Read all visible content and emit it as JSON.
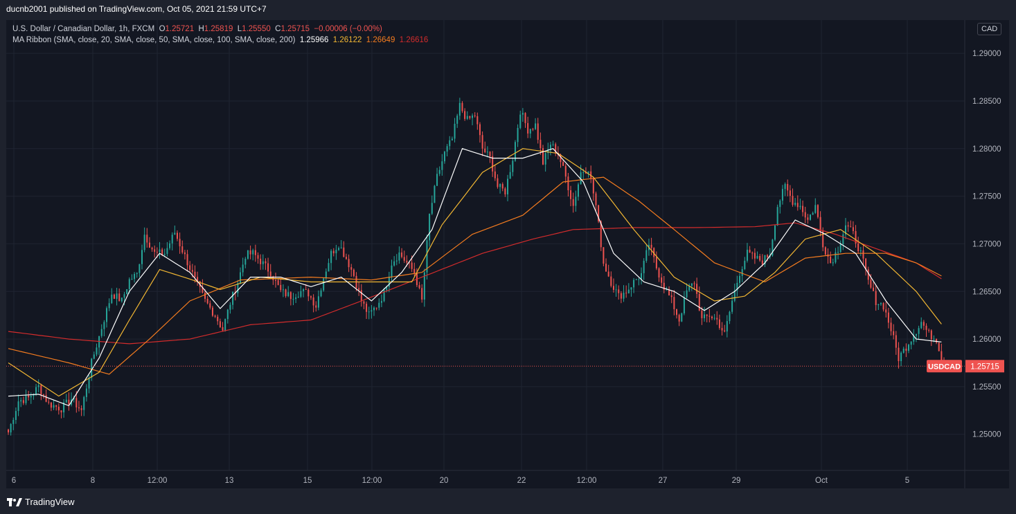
{
  "header": {
    "publisher_text": "ducnb2001 published on TradingView.com, Oct 05, 2021 21:59 UTC+7"
  },
  "legend": {
    "symbol": "U.S. Dollar / Canadian Dollar, 1h, FXCM",
    "open_label": "O",
    "open": "1.25721",
    "high_label": "H",
    "high": "1.25819",
    "low_label": "L",
    "low": "1.25550",
    "close_label": "C",
    "close": "1.25715",
    "change": "−0.00006 (−0.00%)",
    "indicator": "MA Ribbon (SMA, close, 20, SMA, close, 50, SMA, close, 100, SMA, close, 200)",
    "ma_values": [
      "1.25966",
      "1.26122",
      "1.26649",
      "1.26616"
    ]
  },
  "currency": "CAD",
  "price_tag": {
    "symbol": "USDCAD",
    "price": "1.25715"
  },
  "footer": {
    "brand": "TradingView"
  },
  "colors": {
    "background": "#131722",
    "up": "#26a69a",
    "down": "#ef5350",
    "ma20": "#ffffff",
    "ma50": "#f2b733",
    "ma100": "#f57c1f",
    "ma200": "#d42c2c",
    "grid": "#1f2431"
  },
  "chart_data": {
    "type": "line",
    "title": "U.S. Dollar / Canadian Dollar, 1h, FXCM",
    "price_scale": {
      "ticks": [
        "1.25000",
        "1.25500",
        "1.26000",
        "1.26500",
        "1.27000",
        "1.27500",
        "1.28000",
        "1.28500",
        "1.29000"
      ],
      "range": [
        1.2462,
        1.2935
      ]
    },
    "time_axis": {
      "labels": [
        "6",
        "8",
        "12:00",
        "13",
        "15",
        "12:00",
        "20",
        "22",
        "12:00",
        "27",
        "29",
        "Oct",
        "5"
      ]
    },
    "close_path": [
      [
        0,
        1.2502
      ],
      [
        4,
        1.2535
      ],
      [
        8,
        1.2538
      ],
      [
        12,
        1.255
      ],
      [
        16,
        1.2532
      ],
      [
        21,
        1.2527
      ],
      [
        25,
        1.2537
      ],
      [
        29,
        1.2525
      ],
      [
        33,
        1.2575
      ],
      [
        37,
        1.2612
      ],
      [
        41,
        1.2648
      ],
      [
        45,
        1.264
      ],
      [
        48,
        1.2662
      ],
      [
        51,
        1.2668
      ],
      [
        54,
        1.271
      ],
      [
        58,
        1.269
      ],
      [
        62,
        1.269
      ],
      [
        66,
        1.2712
      ],
      [
        70,
        1.2687
      ],
      [
        74,
        1.2662
      ],
      [
        78,
        1.264
      ],
      [
        82,
        1.2625
      ],
      [
        85,
        1.261
      ],
      [
        88,
        1.2638
      ],
      [
        91,
        1.266
      ],
      [
        94,
        1.2688
      ],
      [
        97,
        1.269
      ],
      [
        100,
        1.2682
      ],
      [
        104,
        1.267
      ],
      [
        108,
        1.265
      ],
      [
        112,
        1.2645
      ],
      [
        116,
        1.265
      ],
      [
        119,
        1.2648
      ],
      [
        122,
        1.2635
      ],
      [
        125,
        1.2665
      ],
      [
        128,
        1.269
      ],
      [
        131,
        1.27
      ],
      [
        134,
        1.2685
      ],
      [
        137,
        1.2667
      ],
      [
        140,
        1.264
      ],
      [
        143,
        1.2625
      ],
      [
        146,
        1.2635
      ],
      [
        149,
        1.2648
      ],
      [
        152,
        1.268
      ],
      [
        155,
        1.269
      ],
      [
        158,
        1.268
      ],
      [
        161,
        1.267
      ],
      [
        164,
        1.264
      ],
      [
        167,
        1.273
      ],
      [
        170,
        1.277
      ],
      [
        173,
        1.2795
      ],
      [
        176,
        1.281
      ],
      [
        179,
        1.2845
      ],
      [
        182,
        1.283
      ],
      [
        185,
        1.2835
      ],
      [
        188,
        1.28
      ],
      [
        191,
        1.279
      ],
      [
        194,
        1.276
      ],
      [
        197,
        1.2755
      ],
      [
        200,
        1.279
      ],
      [
        203,
        1.284
      ],
      [
        206,
        1.282
      ],
      [
        209,
        1.2825
      ],
      [
        212,
        1.2785
      ],
      [
        215,
        1.2805
      ],
      [
        218,
        1.2795
      ],
      [
        221,
        1.277
      ],
      [
        224,
        1.274
      ],
      [
        227,
        1.2775
      ],
      [
        230,
        1.278
      ],
      [
        233,
        1.274
      ],
      [
        236,
        1.268
      ],
      [
        239,
        1.266
      ],
      [
        242,
        1.2645
      ],
      [
        245,
        1.265
      ],
      [
        248,
        1.266
      ],
      [
        251,
        1.2668
      ],
      [
        254,
        1.27
      ],
      [
        257,
        1.2675
      ],
      [
        260,
        1.2655
      ],
      [
        263,
        1.264
      ],
      [
        266,
        1.262
      ],
      [
        269,
        1.265
      ],
      [
        272,
        1.266
      ],
      [
        275,
        1.262
      ],
      [
        278,
        1.2625
      ],
      [
        281,
        1.262
      ],
      [
        284,
        1.2605
      ],
      [
        287,
        1.264
      ],
      [
        290,
        1.267
      ],
      [
        293,
        1.269
      ],
      [
        296,
        1.2685
      ],
      [
        299,
        1.2682
      ],
      [
        302,
        1.269
      ],
      [
        305,
        1.274
      ],
      [
        308,
        1.276
      ],
      [
        311,
        1.2745
      ],
      [
        314,
        1.274
      ],
      [
        317,
        1.2725
      ],
      [
        320,
        1.274
      ],
      [
        323,
        1.27
      ],
      [
        326,
        1.268
      ],
      [
        329,
        1.2695
      ],
      [
        332,
        1.272
      ],
      [
        335,
        1.271
      ],
      [
        338,
        1.269
      ],
      [
        341,
        1.266
      ],
      [
        344,
        1.264
      ],
      [
        347,
        1.2635
      ],
      [
        350,
        1.261
      ],
      [
        353,
        1.258
      ],
      [
        356,
        1.2592
      ],
      [
        359,
        1.2605
      ],
      [
        362,
        1.2618
      ],
      [
        365,
        1.2605
      ],
      [
        368,
        1.26
      ],
      [
        371,
        1.25715
      ]
    ],
    "series": [
      {
        "name": "SMA 20",
        "last": 1.25966
      },
      {
        "name": "SMA 50",
        "last": 1.26122
      },
      {
        "name": "SMA 100",
        "last": 1.26649
      },
      {
        "name": "SMA 200",
        "last": 1.26616
      }
    ],
    "ma_paths": {
      "ma20": [
        [
          0,
          1.254
        ],
        [
          12,
          1.2542
        ],
        [
          24,
          1.253
        ],
        [
          36,
          1.258
        ],
        [
          48,
          1.265
        ],
        [
          60,
          1.269
        ],
        [
          72,
          1.267
        ],
        [
          84,
          1.2632
        ],
        [
          96,
          1.2665
        ],
        [
          108,
          1.2665
        ],
        [
          120,
          1.2655
        ],
        [
          132,
          1.2665
        ],
        [
          144,
          1.264
        ],
        [
          156,
          1.267
        ],
        [
          168,
          1.2715
        ],
        [
          180,
          1.28
        ],
        [
          192,
          1.279
        ],
        [
          204,
          1.279
        ],
        [
          216,
          1.28
        ],
        [
          228,
          1.2765
        ],
        [
          240,
          1.269
        ],
        [
          252,
          1.266
        ],
        [
          264,
          1.265
        ],
        [
          276,
          1.263
        ],
        [
          288,
          1.265
        ],
        [
          300,
          1.268
        ],
        [
          312,
          1.2725
        ],
        [
          324,
          1.271
        ],
        [
          336,
          1.269
        ],
        [
          348,
          1.264
        ],
        [
          360,
          1.26
        ],
        [
          371,
          1.25966
        ]
      ],
      "ma50": [
        [
          0,
          1.2575
        ],
        [
          20,
          1.254
        ],
        [
          36,
          1.2565
        ],
        [
          48,
          1.262
        ],
        [
          60,
          1.2673
        ],
        [
          72,
          1.2663
        ],
        [
          84,
          1.2652
        ],
        [
          100,
          1.2665
        ],
        [
          120,
          1.266
        ],
        [
          140,
          1.266
        ],
        [
          160,
          1.266
        ],
        [
          172,
          1.272
        ],
        [
          188,
          1.2775
        ],
        [
          204,
          1.28
        ],
        [
          218,
          1.2795
        ],
        [
          232,
          1.277
        ],
        [
          248,
          1.2715
        ],
        [
          264,
          1.2665
        ],
        [
          280,
          1.264
        ],
        [
          292,
          1.2645
        ],
        [
          304,
          1.267
        ],
        [
          316,
          1.2705
        ],
        [
          330,
          1.2715
        ],
        [
          344,
          1.269
        ],
        [
          360,
          1.265
        ],
        [
          371,
          1.26122
        ]
      ],
      "ma100": [
        [
          0,
          1.259
        ],
        [
          24,
          1.2575
        ],
        [
          40,
          1.2563
        ],
        [
          56,
          1.26
        ],
        [
          72,
          1.264
        ],
        [
          92,
          1.2662
        ],
        [
          120,
          1.2665
        ],
        [
          144,
          1.2662
        ],
        [
          164,
          1.267
        ],
        [
          184,
          1.271
        ],
        [
          204,
          1.273
        ],
        [
          220,
          1.2765
        ],
        [
          236,
          1.277
        ],
        [
          250,
          1.2745
        ],
        [
          264,
          1.2715
        ],
        [
          280,
          1.268
        ],
        [
          300,
          1.266
        ],
        [
          316,
          1.2685
        ],
        [
          332,
          1.269
        ],
        [
          348,
          1.269
        ],
        [
          360,
          1.268
        ],
        [
          371,
          1.26649
        ]
      ],
      "ma200": [
        [
          0,
          1.2608
        ],
        [
          24,
          1.26
        ],
        [
          48,
          1.2595
        ],
        [
          72,
          1.26
        ],
        [
          96,
          1.2615
        ],
        [
          120,
          1.262
        ],
        [
          140,
          1.264
        ],
        [
          164,
          1.2665
        ],
        [
          188,
          1.269
        ],
        [
          208,
          1.2705
        ],
        [
          224,
          1.2715
        ],
        [
          248,
          1.2717
        ],
        [
          272,
          1.2717
        ],
        [
          296,
          1.2718
        ],
        [
          312,
          1.2722
        ],
        [
          328,
          1.271
        ],
        [
          344,
          1.2695
        ],
        [
          360,
          1.268
        ],
        [
          371,
          1.26616
        ]
      ]
    }
  }
}
